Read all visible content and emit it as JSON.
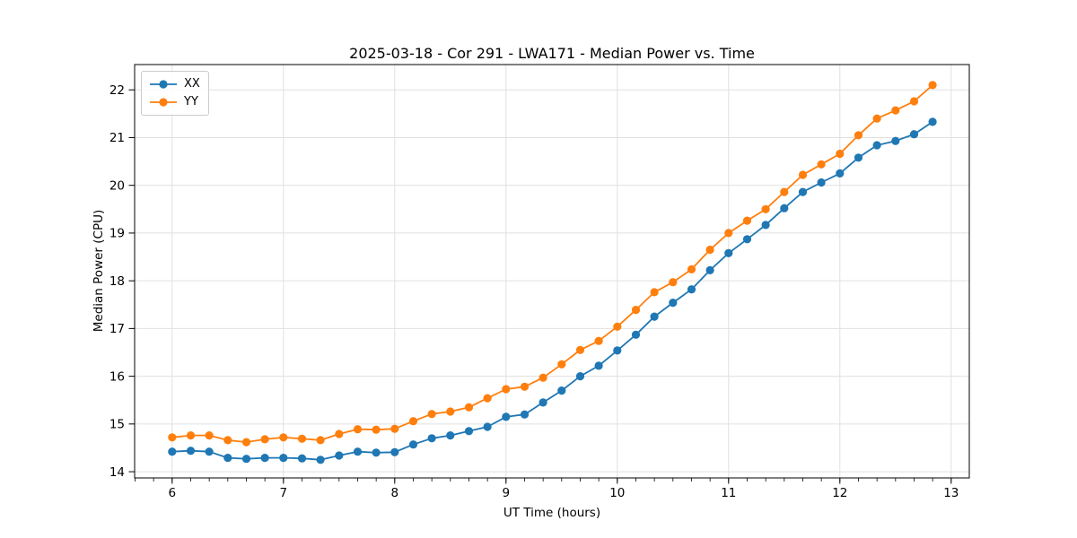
{
  "chart_data": {
    "type": "line",
    "title": "2025-03-18 - Cor 291 - LWA171 - Median Power vs. Time",
    "xlabel": "UT Time (hours)",
    "ylabel": "Median Power (CPU)",
    "xlim": [
      5.663,
      13.163
    ],
    "ylim": [
      13.87,
      22.53
    ],
    "x_ticks": [
      6,
      7,
      8,
      9,
      10,
      11,
      12,
      13
    ],
    "y_ticks": [
      14,
      15,
      16,
      17,
      18,
      19,
      20,
      21,
      22
    ],
    "x_minor_tick_step": 0.16667,
    "grid": true,
    "legend_position": "upper left",
    "marker": "circle",
    "x": [
      6.0,
      6.167,
      6.333,
      6.5,
      6.667,
      6.833,
      7.0,
      7.167,
      7.333,
      7.5,
      7.667,
      7.833,
      8.0,
      8.167,
      8.333,
      8.5,
      8.667,
      8.833,
      9.0,
      9.167,
      9.333,
      9.5,
      9.667,
      9.833,
      10.0,
      10.167,
      10.333,
      10.5,
      10.667,
      10.833,
      11.0,
      11.167,
      11.333,
      11.5,
      11.667,
      11.833,
      12.0,
      12.167,
      12.333,
      12.5,
      12.667,
      12.833
    ],
    "series": [
      {
        "name": "XX",
        "color": "#1f77b4",
        "values": [
          14.42,
          14.44,
          14.42,
          14.29,
          14.27,
          14.29,
          14.29,
          14.28,
          14.25,
          14.34,
          14.42,
          14.4,
          14.41,
          14.57,
          14.7,
          14.76,
          14.85,
          14.94,
          15.15,
          15.2,
          15.45,
          15.7,
          16.0,
          16.22,
          16.54,
          16.87,
          17.25,
          17.54,
          17.82,
          18.22,
          18.58,
          18.87,
          19.17,
          19.52,
          19.86,
          20.06,
          20.25,
          20.58,
          20.84,
          20.93,
          21.07,
          21.33
        ]
      },
      {
        "name": "YY",
        "color": "#ff7f0e",
        "values": [
          14.72,
          14.76,
          14.76,
          14.66,
          14.62,
          14.68,
          14.72,
          14.69,
          14.66,
          14.79,
          14.89,
          14.88,
          14.9,
          15.06,
          15.21,
          15.26,
          15.35,
          15.54,
          15.73,
          15.78,
          15.97,
          16.25,
          16.55,
          16.74,
          17.04,
          17.39,
          17.76,
          17.97,
          18.24,
          18.65,
          19.0,
          19.26,
          19.5,
          19.86,
          20.22,
          20.44,
          20.66,
          21.05,
          21.4,
          21.57,
          21.76,
          22.1
        ]
      }
    ],
    "style": {
      "grid_color": "#e0e0e0",
      "spine_color": "#000000",
      "tick_color": "#000000",
      "line_width": 1.8,
      "marker_radius": 4.6
    }
  }
}
